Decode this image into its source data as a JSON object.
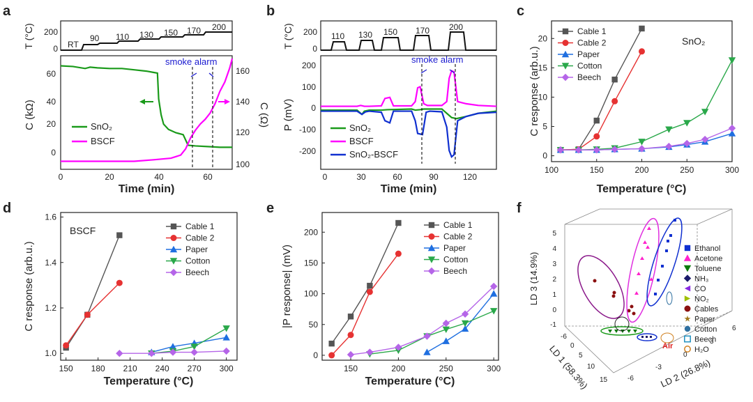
{
  "figure": {
    "a": {
      "letter": "a",
      "t_ylabel": "T (°C)",
      "t_ticks": [
        "0",
        "200"
      ],
      "c_ylabel": "C (kΩ)",
      "c_yticks": [
        "0",
        "20",
        "40",
        "60"
      ],
      "r_ylabel": "C (Ω)",
      "r_yticks": [
        "100",
        "120",
        "140",
        "160"
      ],
      "xlabel": "Time (min)",
      "xticks": [
        "0",
        "20",
        "40",
        "60"
      ],
      "steps": [
        "RT",
        "90",
        "110",
        "130",
        "150",
        "170",
        "200"
      ],
      "annotation": "smoke alarm",
      "legend": [
        "SnO₂",
        "BSCF"
      ],
      "colors": {
        "sno2": "#1a9a1a",
        "bscf": "#ff00ff"
      }
    },
    "b": {
      "letter": "b",
      "t_ylabel": "T (°C)",
      "t_ticks": [
        "0",
        "200"
      ],
      "p_ylabel": "P (mV)",
      "p_yticks": [
        "-200",
        "-100",
        "0",
        "100",
        "200"
      ],
      "xlabel": "Time (min)",
      "xticks": [
        "0",
        "30",
        "60",
        "90",
        "120"
      ],
      "steps": [
        "110",
        "130",
        "150",
        "170",
        "200"
      ],
      "annotation": "smoke alarm",
      "legend": [
        "SnO₂",
        "BSCF",
        "SnO₂-BSCF"
      ],
      "colors": {
        "sno2": "#1a9a1a",
        "bscf": "#ff00ff",
        "combo": "#1030d0"
      }
    },
    "c": {
      "letter": "c",
      "inset": "SnO₂",
      "ylabel": "C response (arb.u.)",
      "xlabel": "Temperature (°C)",
      "xticks": [
        "100",
        "150",
        "200",
        "250",
        "300"
      ],
      "yticks": [
        "0",
        "5",
        "10",
        "15",
        "20"
      ],
      "legend": [
        "Cable 1",
        "Cable 2",
        "Paper",
        "Cotton",
        "Beech"
      ]
    },
    "d": {
      "letter": "d",
      "inset": "BSCF",
      "ylabel": "C response (arb.u.)",
      "xlabel": "Temperature (°C)",
      "xticks": [
        "150",
        "180",
        "210",
        "240",
        "270",
        "300"
      ],
      "yticks": [
        "1.0",
        "1.2",
        "1.4",
        "1.6"
      ],
      "legend": [
        "Cable 1",
        "Cable 2",
        "Paper",
        "Cotton",
        "Beech"
      ]
    },
    "e": {
      "letter": "e",
      "ylabel": "|P response| (mV)",
      "xlabel": "Temperature (°C)",
      "xticks": [
        "150",
        "200",
        "250",
        "300"
      ],
      "yticks": [
        "0",
        "50",
        "100",
        "150",
        "200"
      ],
      "legend": [
        "Cable 1",
        "Cable 2",
        "Paper",
        "Cotton",
        "Beech"
      ]
    },
    "f": {
      "letter": "f",
      "ld1": "LD 1 (58.3%)",
      "ld2": "LD 2 (26.8%)",
      "ld3": "LD 3 (14.9%)",
      "ld1_ticks": [
        "-6",
        "0",
        "5",
        "10",
        "15"
      ],
      "ld2_ticks": [
        "-6",
        "-3",
        "0",
        "3",
        "6"
      ],
      "ld3_ticks": [
        "-1",
        "0",
        "1",
        "2",
        "3",
        "4",
        "5"
      ],
      "air_label": "Air",
      "legend": [
        {
          "label": "Ethanol",
          "color": "#1030d0",
          "marker": "square"
        },
        {
          "label": "Acetone",
          "color": "#ff22cc",
          "marker": "triangle"
        },
        {
          "label": "Toluene",
          "color": "#0a7a0a",
          "marker": "tridown"
        },
        {
          "label": "NH₃",
          "color": "#1a1a6a",
          "marker": "diamond"
        },
        {
          "label": "CO",
          "color": "#8a2be2",
          "marker": "triangle-left"
        },
        {
          "label": "NO₂",
          "color": "#a0c000",
          "marker": "triangle-right"
        },
        {
          "label": "Cables",
          "color": "#8b1010",
          "marker": "circle"
        },
        {
          "label": "Paper",
          "color": "#a07a20",
          "marker": "star"
        },
        {
          "label": "Cotton",
          "color": "#3070a0",
          "marker": "hexagon"
        },
        {
          "label": "Beech",
          "color": "#2090c0",
          "marker": "square-open"
        },
        {
          "label": "H₂O",
          "color": "#d08020",
          "marker": "circle-open"
        }
      ]
    }
  },
  "chart_data": [
    {
      "panel": "c",
      "type": "line",
      "title": "SnO₂",
      "xlabel": "Temperature (°C)",
      "ylabel": "C response (arb.u.)",
      "xlim": [
        100,
        300
      ],
      "ylim": [
        -1,
        23
      ],
      "series": [
        {
          "name": "Cable 1",
          "color": "#555555",
          "marker": "square",
          "x": [
            110,
            130,
            150,
            170,
            200
          ],
          "y": [
            1.0,
            1.1,
            6.0,
            13.0,
            21.7
          ]
        },
        {
          "name": "Cable 2",
          "color": "#e63232",
          "marker": "circle",
          "x": [
            110,
            130,
            150,
            170,
            200
          ],
          "y": [
            1.0,
            1.1,
            3.3,
            9.3,
            17.8
          ]
        },
        {
          "name": "Paper",
          "color": "#1f6fe0",
          "marker": "triangle",
          "x": [
            110,
            130,
            150,
            170,
            200,
            230,
            250,
            270,
            300
          ],
          "y": [
            1.0,
            1.0,
            1.0,
            1.1,
            1.2,
            1.5,
            1.9,
            2.4,
            3.8
          ]
        },
        {
          "name": "Cotton",
          "color": "#2aa84a",
          "marker": "tridown",
          "x": [
            110,
            130,
            150,
            170,
            200,
            230,
            250,
            270,
            300
          ],
          "y": [
            1.0,
            1.0,
            1.1,
            1.3,
            2.4,
            4.5,
            5.6,
            7.5,
            16.3
          ]
        },
        {
          "name": "Beech",
          "color": "#b565e8",
          "marker": "diamond",
          "x": [
            110,
            130,
            150,
            170,
            200,
            230,
            250,
            270,
            300
          ],
          "y": [
            1.0,
            1.0,
            1.0,
            1.1,
            1.2,
            1.6,
            2.1,
            2.8,
            4.7
          ]
        }
      ]
    },
    {
      "panel": "d",
      "type": "line",
      "title": "BSCF",
      "xlabel": "Temperature (°C)",
      "ylabel": "C response (arb.u.)",
      "xlim": [
        145,
        310
      ],
      "ylim": [
        0.97,
        1.62
      ],
      "series": [
        {
          "name": "Cable 1",
          "color": "#555555",
          "marker": "square",
          "x": [
            150,
            170,
            200
          ],
          "y": [
            1.025,
            1.17,
            1.52
          ]
        },
        {
          "name": "Cable 2",
          "color": "#e63232",
          "marker": "circle",
          "x": [
            150,
            170,
            200
          ],
          "y": [
            1.035,
            1.17,
            1.31
          ]
        },
        {
          "name": "Paper",
          "color": "#1f6fe0",
          "marker": "triangle",
          "x": [
            230,
            250,
            270,
            300
          ],
          "y": [
            1.005,
            1.03,
            1.045,
            1.07
          ]
        },
        {
          "name": "Cotton",
          "color": "#2aa84a",
          "marker": "tridown",
          "x": [
            230,
            250,
            270,
            300
          ],
          "y": [
            1.0,
            1.01,
            1.03,
            1.11
          ]
        },
        {
          "name": "Beech",
          "color": "#b565e8",
          "marker": "diamond",
          "x": [
            200,
            230,
            250,
            270,
            300
          ],
          "y": [
            1.0,
            1.0,
            1.005,
            1.005,
            1.01
          ]
        }
      ]
    },
    {
      "panel": "e",
      "type": "line",
      "title": "",
      "xlabel": "Temperature (°C)",
      "ylabel": "|P response| (mV)",
      "xlim": [
        120,
        305
      ],
      "ylim": [
        -8,
        232
      ],
      "series": [
        {
          "name": "Cable 1",
          "color": "#555555",
          "marker": "square",
          "x": [
            130,
            150,
            170,
            200
          ],
          "y": [
            19,
            63,
            113,
            215
          ]
        },
        {
          "name": "Cable 2",
          "color": "#e63232",
          "marker": "circle",
          "x": [
            130,
            150,
            170,
            200
          ],
          "y": [
            0,
            33,
            103,
            165
          ]
        },
        {
          "name": "Paper",
          "color": "#1f6fe0",
          "marker": "triangle",
          "x": [
            230,
            250,
            270,
            300
          ],
          "y": [
            5,
            23,
            43,
            100
          ]
        },
        {
          "name": "Cotton",
          "color": "#2aa84a",
          "marker": "tridown",
          "x": [
            170,
            200,
            230,
            250,
            270,
            300
          ],
          "y": [
            2,
            8,
            31,
            42,
            52,
            72
          ]
        },
        {
          "name": "Beech",
          "color": "#b565e8",
          "marker": "diamond",
          "x": [
            150,
            170,
            200,
            230,
            250,
            270,
            300
          ],
          "y": [
            1,
            5,
            13,
            31,
            52,
            67,
            112
          ]
        }
      ]
    },
    {
      "panel": "a",
      "type": "line",
      "title": "",
      "xlabel": "Time (min)",
      "ylabel": "C (kΩ)",
      "y2label": "C (Ω)",
      "xlim": [
        0,
        70
      ],
      "ylim": [
        -5,
        68
      ],
      "y2lim": [
        100,
        170
      ],
      "series": [
        {
          "name": "SnO₂",
          "color": "#1a9a1a",
          "axis": "left",
          "x": [
            0,
            5,
            10,
            12,
            15,
            20,
            25,
            30,
            35,
            38,
            39.5,
            40,
            41,
            42,
            44,
            47,
            50,
            52,
            55,
            60,
            65,
            70
          ],
          "y": [
            65,
            64.5,
            63,
            64,
            63.5,
            63,
            63,
            62,
            61,
            60,
            59.5,
            40,
            28,
            21,
            17,
            14.5,
            13,
            5,
            4.5,
            4,
            3.5,
            3.5
          ]
        },
        {
          "name": "BSCF",
          "color": "#ff00ff",
          "axis": "right",
          "x": [
            0,
            10,
            20,
            30,
            38,
            45,
            49,
            51,
            53,
            55,
            57,
            59,
            61,
            63,
            65,
            67,
            69,
            70
          ],
          "y": [
            102,
            102,
            102,
            102,
            103,
            104,
            106,
            110,
            117,
            122,
            126,
            129,
            133,
            139,
            147,
            153,
            162,
            168
          ]
        }
      ]
    },
    {
      "panel": "b",
      "type": "line",
      "title": "",
      "xlabel": "Time (min)",
      "ylabel": "P (mV)",
      "xlim": [
        0,
        145
      ],
      "ylim": [
        -240,
        225
      ],
      "series": [
        {
          "name": "SnO₂",
          "color": "#1a9a1a",
          "x": [
            0,
            30,
            34,
            36,
            40,
            50,
            55,
            75,
            78,
            82,
            85,
            100,
            104,
            108,
            112,
            120,
            130,
            145
          ],
          "y": [
            -10,
            -10,
            -30,
            -15,
            -10,
            -10,
            -8,
            -5,
            -10,
            -8,
            -5,
            -5,
            -25,
            -45,
            -50,
            -40,
            -25,
            -15
          ]
        },
        {
          "name": "BSCF",
          "color": "#ff00ff",
          "x": [
            0,
            30,
            33,
            36,
            40,
            50,
            53,
            57,
            60,
            75,
            78,
            80,
            82,
            85,
            88,
            100,
            104,
            106,
            108,
            110,
            113,
            120,
            130,
            145
          ],
          "y": [
            8,
            8,
            12,
            8,
            8,
            10,
            45,
            50,
            10,
            10,
            30,
            95,
            100,
            20,
            12,
            12,
            30,
            140,
            175,
            170,
            30,
            20,
            12,
            8
          ]
        },
        {
          "name": "SnO₂-BSCF",
          "color": "#1030d0",
          "x": [
            0,
            30,
            34,
            37,
            40,
            50,
            53,
            57,
            60,
            75,
            78,
            80,
            84,
            87,
            90,
            100,
            104,
            106,
            108,
            110,
            113,
            120,
            130,
            145
          ],
          "y": [
            -15,
            -15,
            -30,
            -18,
            -15,
            -20,
            -60,
            -70,
            -15,
            -15,
            -60,
            -120,
            -125,
            -20,
            -15,
            -18,
            -90,
            -200,
            -230,
            -220,
            -60,
            -40,
            -25,
            -20
          ]
        }
      ]
    }
  ]
}
